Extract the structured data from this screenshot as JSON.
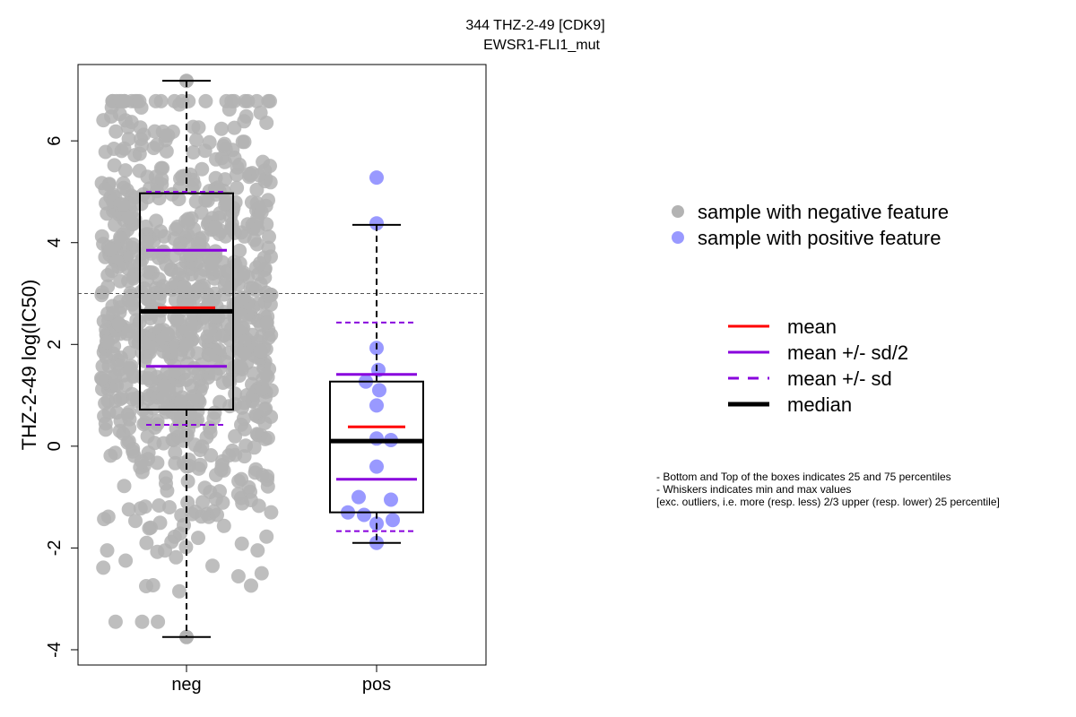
{
  "chart_data": {
    "type": "box",
    "title": "344 THZ-2-49 [CDK9]",
    "subtitle": "EWSR1-FLI1_mut",
    "ylabel": "THZ-2-49 log(IC50)",
    "xlabel": "",
    "ylim": [
      -4.3,
      7.5
    ],
    "yticks": [
      -4,
      -2,
      0,
      2,
      4,
      6
    ],
    "categories": [
      "neg",
      "pos"
    ],
    "reference_line": 3.0,
    "grid": false,
    "colors": {
      "neg_points": "#b3b3b3",
      "pos_points": "#9999ff",
      "mean": "#ff0000",
      "sd": "#8800dd",
      "median": "#000000",
      "reference": "#555555"
    },
    "boxes": [
      {
        "category": "neg",
        "q1": 0.72,
        "median": 2.65,
        "q3": 4.97,
        "whisker_low": -3.75,
        "whisker_high": 7.18,
        "mean": 2.72,
        "mean_minus_half_sd": 1.57,
        "mean_plus_half_sd": 3.85,
        "mean_minus_sd": 0.42,
        "mean_plus_sd": 5.0,
        "point_count": 900,
        "points_min": -3.75,
        "points_max": 7.18
      },
      {
        "category": "pos",
        "q1": -1.3,
        "median": 0.1,
        "q3": 1.27,
        "whisker_low": -1.9,
        "whisker_high": 4.35,
        "mean": 0.38,
        "mean_minus_half_sd": -0.65,
        "mean_plus_half_sd": 1.41,
        "mean_minus_sd": -1.67,
        "mean_plus_sd": 2.43,
        "points": [
          5.28,
          4.38,
          1.93,
          1.5,
          1.27,
          1.1,
          0.8,
          0.15,
          0.12,
          -0.4,
          -1.0,
          -1.05,
          -1.3,
          -1.35,
          -1.45,
          -1.52,
          -1.9
        ]
      }
    ],
    "legend": {
      "position": "right",
      "points": [
        {
          "label": "sample with negative feature",
          "color": "#b3b3b3"
        },
        {
          "label": "sample with positive feature",
          "color": "#9999ff"
        }
      ],
      "lines": [
        {
          "label": "mean",
          "color": "#ff0000",
          "style": "solid"
        },
        {
          "label": "mean +/- sd/2",
          "color": "#8800dd",
          "style": "solid"
        },
        {
          "label": "mean +/- sd",
          "color": "#8800dd",
          "style": "dashed"
        },
        {
          "label": "median",
          "color": "#000000",
          "style": "solid-thick"
        }
      ]
    },
    "notes": [
      "- Bottom and Top of the boxes indicates 25 and 75 percentiles",
      "- Whiskers indicates min and max values",
      "[exc. outliers, i.e. more (resp. less) 2/3 upper (resp. lower) 25 percentile]"
    ]
  }
}
